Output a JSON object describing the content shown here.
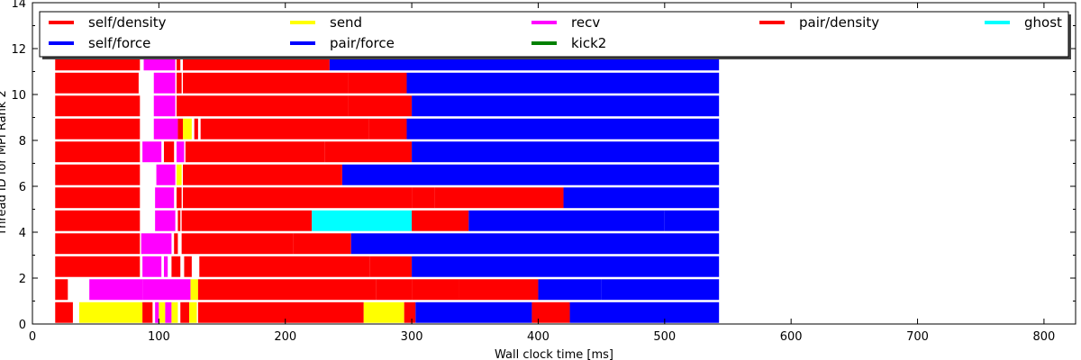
{
  "chart_data": {
    "type": "gantt",
    "xlabel": "Wall clock time [ms]",
    "ylabel": "Thread ID for MPI Rank 2",
    "xlim": [
      0,
      825
    ],
    "ylim": [
      0,
      14
    ],
    "xticks": [
      0,
      100,
      200,
      300,
      400,
      500,
      600,
      700,
      800
    ],
    "yticks": [
      0,
      2,
      4,
      6,
      8,
      10,
      12,
      14
    ],
    "legend_position": "top",
    "legend": [
      {
        "name": "self/density",
        "color": "#ff0000"
      },
      {
        "name": "send",
        "color": "#ffff00"
      },
      {
        "name": "recv",
        "color": "#ff00ff"
      },
      {
        "name": "pair/density",
        "color": "#ff0000"
      },
      {
        "name": "ghost",
        "color": "#00ffff"
      },
      {
        "name": "self/force",
        "color": "#0000ff"
      },
      {
        "name": "pair/force",
        "color": "#0000ff"
      },
      {
        "name": "kick2",
        "color": "#008000"
      }
    ],
    "colors": {
      "red": "#ff0000",
      "yellow": "#ffff00",
      "magenta": "#ff00ff",
      "cyan": "#00ffff",
      "blue": "#0000ff",
      "green": "#008000"
    },
    "threads": [
      {
        "thread": 0,
        "segments": [
          [
            18,
            32,
            "red"
          ],
          [
            37,
            87,
            "yellow"
          ],
          [
            87,
            95,
            "red"
          ],
          [
            97,
            100,
            "magenta"
          ],
          [
            100,
            105,
            "yellow"
          ],
          [
            105,
            110,
            "magenta"
          ],
          [
            110,
            115,
            "yellow"
          ],
          [
            117,
            124,
            "red"
          ],
          [
            124,
            130,
            "yellow"
          ],
          [
            131,
            262,
            "red"
          ],
          [
            262,
            294,
            "yellow"
          ],
          [
            294,
            303,
            "red"
          ],
          [
            303,
            395,
            "blue"
          ],
          [
            395,
            425,
            "red"
          ],
          [
            425,
            543,
            "blue"
          ]
        ]
      },
      {
        "thread": 1,
        "segments": [
          [
            18,
            28,
            "red"
          ],
          [
            45,
            87,
            "magenta"
          ],
          [
            87,
            125,
            "magenta"
          ],
          [
            125,
            131,
            "yellow"
          ],
          [
            131,
            272,
            "red"
          ],
          [
            272,
            300,
            "red"
          ],
          [
            300,
            337,
            "red"
          ],
          [
            337,
            400,
            "red"
          ],
          [
            400,
            450,
            "blue"
          ],
          [
            450,
            543,
            "blue"
          ]
        ]
      },
      {
        "thread": 2,
        "segments": [
          [
            18,
            85,
            "red"
          ],
          [
            87,
            102,
            "magenta"
          ],
          [
            104,
            107,
            "magenta"
          ],
          [
            110,
            117,
            "red"
          ],
          [
            120,
            126,
            "red"
          ],
          [
            132,
            267,
            "red"
          ],
          [
            267,
            300,
            "red"
          ],
          [
            300,
            543,
            "blue"
          ]
        ]
      },
      {
        "thread": 3,
        "segments": [
          [
            18,
            85,
            "red"
          ],
          [
            86,
            110,
            "magenta"
          ],
          [
            112,
            115,
            "red"
          ],
          [
            118,
            206,
            "red"
          ],
          [
            206,
            252,
            "red"
          ],
          [
            252,
            543,
            "blue"
          ]
        ]
      },
      {
        "thread": 4,
        "segments": [
          [
            18,
            85,
            "red"
          ],
          [
            97,
            113,
            "magenta"
          ],
          [
            115,
            117,
            "red"
          ],
          [
            118,
            221,
            "red"
          ],
          [
            221,
            300,
            "cyan"
          ],
          [
            300,
            345,
            "red"
          ],
          [
            345,
            500,
            "blue"
          ],
          [
            500,
            543,
            "blue"
          ]
        ]
      },
      {
        "thread": 5,
        "segments": [
          [
            18,
            85,
            "red"
          ],
          [
            97,
            112,
            "magenta"
          ],
          [
            114,
            118,
            "red"
          ],
          [
            119,
            300,
            "red"
          ],
          [
            300,
            318,
            "red"
          ],
          [
            318,
            420,
            "red"
          ],
          [
            420,
            543,
            "blue"
          ]
        ]
      },
      {
        "thread": 6,
        "segments": [
          [
            18,
            85,
            "red"
          ],
          [
            98,
            113,
            "magenta"
          ],
          [
            114,
            118,
            "yellow"
          ],
          [
            119,
            245,
            "red"
          ],
          [
            245,
            543,
            "blue"
          ]
        ]
      },
      {
        "thread": 7,
        "segments": [
          [
            18,
            85,
            "red"
          ],
          [
            87,
            102,
            "magenta"
          ],
          [
            104,
            112,
            "red"
          ],
          [
            114,
            120,
            "magenta"
          ],
          [
            121,
            231,
            "red"
          ],
          [
            231,
            300,
            "red"
          ],
          [
            300,
            543,
            "blue"
          ]
        ]
      },
      {
        "thread": 8,
        "segments": [
          [
            18,
            85,
            "red"
          ],
          [
            96,
            115,
            "magenta"
          ],
          [
            115,
            119,
            "red"
          ],
          [
            119,
            126,
            "yellow"
          ],
          [
            128,
            131,
            "red"
          ],
          [
            133,
            266,
            "red"
          ],
          [
            266,
            296,
            "red"
          ],
          [
            296,
            543,
            "blue"
          ]
        ]
      },
      {
        "thread": 9,
        "segments": [
          [
            18,
            85,
            "red"
          ],
          [
            96,
            113,
            "magenta"
          ],
          [
            114,
            250,
            "red"
          ],
          [
            250,
            300,
            "red"
          ],
          [
            300,
            543,
            "blue"
          ]
        ]
      },
      {
        "thread": 10,
        "segments": [
          [
            18,
            84,
            "red"
          ],
          [
            96,
            113,
            "magenta"
          ],
          [
            114,
            118,
            "red"
          ],
          [
            119,
            250,
            "red"
          ],
          [
            250,
            296,
            "red"
          ],
          [
            296,
            543,
            "blue"
          ]
        ]
      },
      {
        "thread": 11,
        "segments": [
          [
            18,
            85,
            "red"
          ],
          [
            88,
            113,
            "magenta"
          ],
          [
            114,
            117,
            "red"
          ],
          [
            119,
            235,
            "red"
          ],
          [
            235,
            543,
            "blue"
          ]
        ]
      }
    ]
  }
}
